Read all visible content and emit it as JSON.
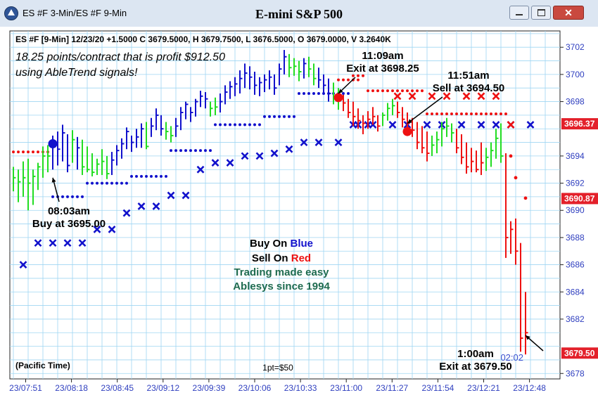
{
  "window": {
    "title": "ES #F 3-Min/ES #F 9-Min",
    "chart_title": "E-mini S&P 500",
    "buttons": [
      "minimize",
      "maximize",
      "close"
    ]
  },
  "info_bar": "ES #F [9-Min] 12/23/20  +1.5000 C 3679.5000, H 3679.7500, L 3676.5000, O 3679.0000, V 3.2640K",
  "profit_note": [
    "18.25 points/contract that is profit $912.50",
    "using AbleTrend signals!"
  ],
  "legend": {
    "buy_prefix": "Buy On ",
    "buy_word": "Blue",
    "sell_prefix": "Sell On ",
    "sell_word": "Red",
    "line3": "Trading made easy",
    "line4": "Ablesys since 1994"
  },
  "footer": {
    "timezone": "(Pacific Time)",
    "point_value": "1pt=$50"
  },
  "countdown": "02:02",
  "colors": {
    "buy": "#1111cc",
    "sell": "#ee1111",
    "neutral": "#22dd22",
    "grid": "#9fd6f2",
    "axis_text": "#2f3fbf",
    "legend_green": "#1e6b4f"
  },
  "chart_data": {
    "type": "bar",
    "subtype": "ohlc_price_bars",
    "title": "E-mini S&P 500",
    "x_tick_labels": [
      "23/07:51",
      "23/08:18",
      "23/08:45",
      "23/09:12",
      "23/09:39",
      "23/10:06",
      "23/10:33",
      "23/11:00",
      "23/11:27",
      "23/11:54",
      "23/12:21",
      "23/12:48"
    ],
    "y_tick_labels": [
      3702,
      3700,
      3698,
      3694,
      3692,
      3690,
      3688,
      3686,
      3684,
      3682,
      3678
    ],
    "ylim": [
      3677.6,
      3703.2
    ],
    "price_tags": [
      {
        "value": 3696.37,
        "label": "3696.37"
      },
      {
        "value": 3690.87,
        "label": "3690.87"
      },
      {
        "value": 3679.5,
        "label": "3679.50"
      }
    ],
    "grid": true,
    "bars": [
      {
        "h": 3693.2,
        "l": 3691.4,
        "c": 3692.4,
        "col": "g"
      },
      {
        "h": 3693.0,
        "l": 3690.6,
        "c": 3692.1,
        "col": "g"
      },
      {
        "h": 3693.6,
        "l": 3691.0,
        "c": 3692.4,
        "col": "g"
      },
      {
        "h": 3693.8,
        "l": 3690.0,
        "c": 3692.0,
        "col": "g"
      },
      {
        "h": 3693.0,
        "l": 3690.4,
        "c": 3692.5,
        "col": "g"
      },
      {
        "h": 3693.5,
        "l": 3691.5,
        "c": 3693.2,
        "col": "g"
      },
      {
        "h": 3694.7,
        "l": 3692.4,
        "c": 3694.0,
        "col": "g"
      },
      {
        "h": 3694.8,
        "l": 3692.8,
        "c": 3694.0,
        "col": "g"
      },
      {
        "h": 3695.5,
        "l": 3693.0,
        "c": 3694.8,
        "col": "b"
      },
      {
        "h": 3695.8,
        "l": 3693.3,
        "c": 3694.5,
        "col": "b"
      },
      {
        "h": 3696.3,
        "l": 3693.6,
        "c": 3695.7,
        "col": "b"
      },
      {
        "h": 3695.6,
        "l": 3692.8,
        "c": 3693.3,
        "col": "b"
      },
      {
        "h": 3695.9,
        "l": 3693.5,
        "c": 3695.2,
        "col": "g"
      },
      {
        "h": 3695.4,
        "l": 3693.0,
        "c": 3694.6,
        "col": "b"
      },
      {
        "h": 3695.2,
        "l": 3692.6,
        "c": 3693.2,
        "col": "g"
      },
      {
        "h": 3694.7,
        "l": 3692.8,
        "c": 3693.0,
        "col": "g"
      },
      {
        "h": 3694.2,
        "l": 3692.5,
        "c": 3692.8,
        "col": "g"
      },
      {
        "h": 3693.8,
        "l": 3692.6,
        "c": 3693.4,
        "col": "g"
      },
      {
        "h": 3694.5,
        "l": 3692.6,
        "c": 3693.6,
        "col": "g"
      },
      {
        "h": 3694.0,
        "l": 3692.3,
        "c": 3692.7,
        "col": "g"
      },
      {
        "h": 3694.3,
        "l": 3692.6,
        "c": 3693.7,
        "col": "b"
      },
      {
        "h": 3694.8,
        "l": 3693.3,
        "c": 3694.4,
        "col": "b"
      },
      {
        "h": 3695.3,
        "l": 3693.8,
        "c": 3694.9,
        "col": "b"
      },
      {
        "h": 3696.1,
        "l": 3694.5,
        "c": 3695.8,
        "col": "b"
      },
      {
        "h": 3695.5,
        "l": 3694.3,
        "c": 3695.0,
        "col": "b"
      },
      {
        "h": 3696.0,
        "l": 3694.6,
        "c": 3695.4,
        "col": "b"
      },
      {
        "h": 3696.4,
        "l": 3694.6,
        "c": 3696.0,
        "col": "b"
      },
      {
        "h": 3696.5,
        "l": 3694.5,
        "c": 3694.7,
        "col": "g"
      },
      {
        "h": 3696.8,
        "l": 3695.4,
        "c": 3696.2,
        "col": "b"
      },
      {
        "h": 3697.5,
        "l": 3695.9,
        "c": 3697.0,
        "col": "b"
      },
      {
        "h": 3697.0,
        "l": 3695.5,
        "c": 3696.0,
        "col": "b"
      },
      {
        "h": 3696.5,
        "l": 3695.2,
        "c": 3695.8,
        "col": "g"
      },
      {
        "h": 3696.2,
        "l": 3695.0,
        "c": 3695.5,
        "col": "g"
      },
      {
        "h": 3696.8,
        "l": 3695.4,
        "c": 3696.2,
        "col": "b"
      },
      {
        "h": 3697.6,
        "l": 3695.9,
        "c": 3697.2,
        "col": "b"
      },
      {
        "h": 3698.0,
        "l": 3696.7,
        "c": 3697.8,
        "col": "b"
      },
      {
        "h": 3697.6,
        "l": 3696.5,
        "c": 3697.2,
        "col": "b"
      },
      {
        "h": 3698.2,
        "l": 3696.9,
        "c": 3698.0,
        "col": "b"
      },
      {
        "h": 3698.8,
        "l": 3697.6,
        "c": 3698.4,
        "col": "b"
      },
      {
        "h": 3698.7,
        "l": 3697.5,
        "c": 3698.2,
        "col": "b"
      },
      {
        "h": 3698.0,
        "l": 3696.9,
        "c": 3697.5,
        "col": "g"
      },
      {
        "h": 3698.3,
        "l": 3697.0,
        "c": 3697.6,
        "col": "g"
      },
      {
        "h": 3698.6,
        "l": 3697.2,
        "c": 3698.0,
        "col": "b"
      },
      {
        "h": 3699.2,
        "l": 3697.8,
        "c": 3698.7,
        "col": "b"
      },
      {
        "h": 3699.5,
        "l": 3698.2,
        "c": 3699.1,
        "col": "b"
      },
      {
        "h": 3699.8,
        "l": 3698.4,
        "c": 3699.3,
        "col": "b"
      },
      {
        "h": 3700.3,
        "l": 3698.6,
        "c": 3699.7,
        "col": "b"
      },
      {
        "h": 3700.8,
        "l": 3699.0,
        "c": 3700.1,
        "col": "b"
      },
      {
        "h": 3700.6,
        "l": 3698.9,
        "c": 3699.8,
        "col": "b"
      },
      {
        "h": 3700.2,
        "l": 3698.5,
        "c": 3699.2,
        "col": "b"
      },
      {
        "h": 3699.8,
        "l": 3698.4,
        "c": 3699.4,
        "col": "b"
      },
      {
        "h": 3700.0,
        "l": 3698.7,
        "c": 3699.6,
        "col": "b"
      },
      {
        "h": 3700.3,
        "l": 3698.9,
        "c": 3699.8,
        "col": "b"
      },
      {
        "h": 3700.0,
        "l": 3698.5,
        "c": 3699.0,
        "col": "b"
      },
      {
        "h": 3700.8,
        "l": 3699.2,
        "c": 3700.4,
        "col": "b"
      },
      {
        "h": 3701.8,
        "l": 3700.0,
        "c": 3701.3,
        "col": "b"
      },
      {
        "h": 3701.5,
        "l": 3699.8,
        "c": 3700.5,
        "col": "g"
      },
      {
        "h": 3701.2,
        "l": 3699.9,
        "c": 3700.6,
        "col": "g"
      },
      {
        "h": 3701.0,
        "l": 3699.5,
        "c": 3700.2,
        "col": "g"
      },
      {
        "h": 3701.2,
        "l": 3699.7,
        "c": 3700.8,
        "col": "b"
      },
      {
        "h": 3701.3,
        "l": 3699.8,
        "c": 3700.4,
        "col": "g"
      },
      {
        "h": 3700.8,
        "l": 3699.2,
        "c": 3699.7,
        "col": "g"
      },
      {
        "h": 3700.5,
        "l": 3699.0,
        "c": 3699.6,
        "col": "b"
      },
      {
        "h": 3700.0,
        "l": 3698.6,
        "c": 3699.2,
        "col": "b"
      },
      {
        "h": 3699.7,
        "l": 3698.0,
        "c": 3698.6,
        "col": "b"
      },
      {
        "h": 3699.4,
        "l": 3697.8,
        "c": 3698.3,
        "col": "g"
      },
      {
        "h": 3699.0,
        "l": 3697.4,
        "c": 3698.5,
        "col": "g"
      },
      {
        "h": 3698.5,
        "l": 3697.3,
        "c": 3697.9,
        "col": "r"
      },
      {
        "h": 3698.2,
        "l": 3696.8,
        "c": 3697.2,
        "col": "r"
      },
      {
        "h": 3698.0,
        "l": 3696.2,
        "c": 3696.9,
        "col": "r"
      },
      {
        "h": 3697.5,
        "l": 3696.0,
        "c": 3696.6,
        "col": "r"
      },
      {
        "h": 3697.0,
        "l": 3695.6,
        "c": 3696.4,
        "col": "r"
      },
      {
        "h": 3697.3,
        "l": 3696.0,
        "c": 3696.7,
        "col": "r"
      },
      {
        "h": 3697.6,
        "l": 3696.3,
        "c": 3696.9,
        "col": "r"
      },
      {
        "h": 3697.0,
        "l": 3695.8,
        "c": 3696.2,
        "col": "r"
      },
      {
        "h": 3697.2,
        "l": 3696.2,
        "c": 3697.0,
        "col": "g"
      },
      {
        "h": 3697.9,
        "l": 3696.6,
        "c": 3697.5,
        "col": "g"
      },
      {
        "h": 3698.2,
        "l": 3697.0,
        "c": 3697.7,
        "col": "g"
      },
      {
        "h": 3698.0,
        "l": 3696.8,
        "c": 3697.2,
        "col": "r"
      },
      {
        "h": 3697.6,
        "l": 3696.1,
        "c": 3696.7,
        "col": "r"
      },
      {
        "h": 3697.2,
        "l": 3695.8,
        "c": 3696.4,
        "col": "r"
      },
      {
        "h": 3696.8,
        "l": 3695.4,
        "c": 3695.9,
        "col": "r"
      },
      {
        "h": 3696.5,
        "l": 3694.5,
        "c": 3695.0,
        "col": "r"
      },
      {
        "h": 3696.2,
        "l": 3694.2,
        "c": 3694.6,
        "col": "r"
      },
      {
        "h": 3695.8,
        "l": 3693.6,
        "c": 3694.2,
        "col": "r"
      },
      {
        "h": 3695.5,
        "l": 3694.0,
        "c": 3694.8,
        "col": "g"
      },
      {
        "h": 3695.8,
        "l": 3694.2,
        "c": 3695.2,
        "col": "g"
      },
      {
        "h": 3696.5,
        "l": 3694.7,
        "c": 3696.0,
        "col": "g"
      },
      {
        "h": 3696.8,
        "l": 3695.4,
        "c": 3696.2,
        "col": "g"
      },
      {
        "h": 3696.4,
        "l": 3695.0,
        "c": 3695.7,
        "col": "g"
      },
      {
        "h": 3696.0,
        "l": 3694.2,
        "c": 3694.6,
        "col": "r"
      },
      {
        "h": 3695.6,
        "l": 3693.4,
        "c": 3693.9,
        "col": "r"
      },
      {
        "h": 3695.0,
        "l": 3692.7,
        "c": 3693.2,
        "col": "r"
      },
      {
        "h": 3694.6,
        "l": 3692.8,
        "c": 3693.6,
        "col": "r"
      },
      {
        "h": 3694.4,
        "l": 3692.8,
        "c": 3693.0,
        "col": "r"
      },
      {
        "h": 3695.0,
        "l": 3692.6,
        "c": 3693.5,
        "col": "r"
      },
      {
        "h": 3694.6,
        "l": 3692.9,
        "c": 3693.9,
        "col": "g"
      },
      {
        "h": 3695.0,
        "l": 3693.2,
        "c": 3694.4,
        "col": "g"
      },
      {
        "h": 3696.0,
        "l": 3693.8,
        "c": 3695.3,
        "col": "g"
      },
      {
        "h": 3696.4,
        "l": 3693.5,
        "c": 3694.0,
        "col": "g"
      },
      {
        "h": 3694.2,
        "l": 3686.5,
        "c": 3688.0,
        "col": "r"
      },
      {
        "h": 3689.2,
        "l": 3686.8,
        "c": 3688.6,
        "col": "r"
      },
      {
        "h": 3689.4,
        "l": 3686.0,
        "c": 3687.0,
        "col": "r"
      },
      {
        "h": 3687.6,
        "l": 3679.6,
        "c": 3680.6,
        "col": "r"
      },
      {
        "h": 3684.0,
        "l": 3679.4,
        "c": 3681.0,
        "col": "r"
      }
    ],
    "support_dots": [
      {
        "x1": 0,
        "x2": 7,
        "y": 3694.3,
        "color": "sell"
      },
      {
        "x1": 8,
        "x2": 14,
        "y": 3691.0,
        "color": "buy"
      },
      {
        "x1": 15,
        "x2": 23,
        "y": 3692.0,
        "color": "buy"
      },
      {
        "x1": 24,
        "x2": 31,
        "y": 3692.5,
        "color": "buy"
      },
      {
        "x1": 32,
        "x2": 40,
        "y": 3694.4,
        "color": "buy"
      },
      {
        "x1": 41,
        "x2": 50,
        "y": 3696.3,
        "color": "buy"
      },
      {
        "x1": 51,
        "x2": 57,
        "y": 3696.9,
        "color": "buy"
      },
      {
        "x1": 58,
        "x2": 68,
        "y": 3698.6,
        "color": "buy"
      },
      {
        "x1": 66,
        "x2": 70,
        "y": 3699.6,
        "color": "sell"
      },
      {
        "x1": 69,
        "x2": 71,
        "y": 3699.9,
        "color": "sell"
      },
      {
        "x1": 72,
        "x2": 83,
        "y": 3698.8,
        "color": "sell"
      },
      {
        "x1": 84,
        "x2": 100,
        "y": 3697.1,
        "color": "sell"
      }
    ],
    "stop_x_markers": [
      {
        "i": 2,
        "y": 3686.0,
        "color": "buy"
      },
      {
        "i": 5,
        "y": 3687.6,
        "color": "buy"
      },
      {
        "i": 8,
        "y": 3687.6,
        "color": "buy"
      },
      {
        "i": 11,
        "y": 3687.6,
        "color": "buy"
      },
      {
        "i": 14,
        "y": 3687.6,
        "color": "buy"
      },
      {
        "i": 17,
        "y": 3688.6,
        "color": "buy"
      },
      {
        "i": 20,
        "y": 3688.6,
        "color": "buy"
      },
      {
        "i": 23,
        "y": 3689.8,
        "color": "buy"
      },
      {
        "i": 26,
        "y": 3690.3,
        "color": "buy"
      },
      {
        "i": 29,
        "y": 3690.3,
        "color": "buy"
      },
      {
        "i": 32,
        "y": 3691.1,
        "color": "buy"
      },
      {
        "i": 35,
        "y": 3691.1,
        "color": "buy"
      },
      {
        "i": 38,
        "y": 3693.0,
        "color": "buy"
      },
      {
        "i": 41,
        "y": 3693.5,
        "color": "buy"
      },
      {
        "i": 44,
        "y": 3693.5,
        "color": "buy"
      },
      {
        "i": 47,
        "y": 3694.0,
        "color": "buy"
      },
      {
        "i": 50,
        "y": 3694.0,
        "color": "buy"
      },
      {
        "i": 53,
        "y": 3694.2,
        "color": "buy"
      },
      {
        "i": 56,
        "y": 3694.5,
        "color": "buy"
      },
      {
        "i": 59,
        "y": 3695.0,
        "color": "buy"
      },
      {
        "i": 62,
        "y": 3695.0,
        "color": "buy"
      },
      {
        "i": 66,
        "y": 3695.0,
        "color": "buy"
      },
      {
        "i": 70,
        "y": 3696.3,
        "color": "buy"
      },
      {
        "i": 73,
        "y": 3696.3,
        "color": "buy"
      },
      {
        "i": 77,
        "y": 3696.3,
        "color": "buy"
      },
      {
        "i": 80,
        "y": 3696.3,
        "color": "buy"
      },
      {
        "i": 84,
        "y": 3696.3,
        "color": "buy"
      },
      {
        "i": 87,
        "y": 3696.3,
        "color": "buy"
      },
      {
        "i": 91,
        "y": 3696.3,
        "color": "buy"
      },
      {
        "i": 95,
        "y": 3696.3,
        "color": "buy"
      },
      {
        "i": 98,
        "y": 3696.3,
        "color": "buy"
      },
      {
        "i": 101,
        "y": 3696.3,
        "color": "buy"
      },
      {
        "i": 105,
        "y": 3696.3,
        "color": "buy"
      },
      {
        "i": 69,
        "y": 3696.3,
        "color": "buy"
      },
      {
        "i": 72,
        "y": 3696.3,
        "color": "buy"
      },
      {
        "i": 78,
        "y": 3698.4,
        "color": "sell"
      },
      {
        "i": 81,
        "y": 3698.4,
        "color": "sell"
      },
      {
        "i": 85,
        "y": 3698.4,
        "color": "sell"
      },
      {
        "i": 88,
        "y": 3698.4,
        "color": "sell"
      },
      {
        "i": 92,
        "y": 3698.4,
        "color": "sell"
      },
      {
        "i": 95,
        "y": 3698.4,
        "color": "sell"
      },
      {
        "i": 98,
        "y": 3698.4,
        "color": "sell"
      },
      {
        "i": 101,
        "y": 3696.3,
        "color": "sell"
      }
    ],
    "trailing_dots": [
      {
        "i": 101,
        "y": 3694.0,
        "color": "sell"
      },
      {
        "i": 102,
        "y": 3692.4,
        "color": "sell"
      },
      {
        "i": 104,
        "y": 3690.9,
        "color": "sell"
      }
    ],
    "signal_circles": [
      {
        "i": 8,
        "y": 3694.9,
        "color": "buy"
      },
      {
        "i": 66,
        "y": 3698.3,
        "color": "sell"
      },
      {
        "i": 80,
        "y": 3695.8,
        "color": "sell"
      }
    ],
    "annotations": [
      {
        "lines": [
          "08:03am",
          "Buy at 3695.00"
        ],
        "arrow_to_bar": 8,
        "arrow_to_y": 3692.4
      },
      {
        "lines": [
          "11:09am",
          "Exit at 3698.25"
        ],
        "arrow_to_bar": 66,
        "arrow_to_y": 3698.6
      },
      {
        "lines": [
          "11:51am",
          "Sell at 3694.50"
        ],
        "arrow_to_bar": 80,
        "arrow_to_y": 3696.4
      },
      {
        "lines": [
          "1:00am",
          "Exit at 3679.50"
        ],
        "arrow_to_bar": 104,
        "arrow_to_y": 3680.8
      }
    ]
  }
}
